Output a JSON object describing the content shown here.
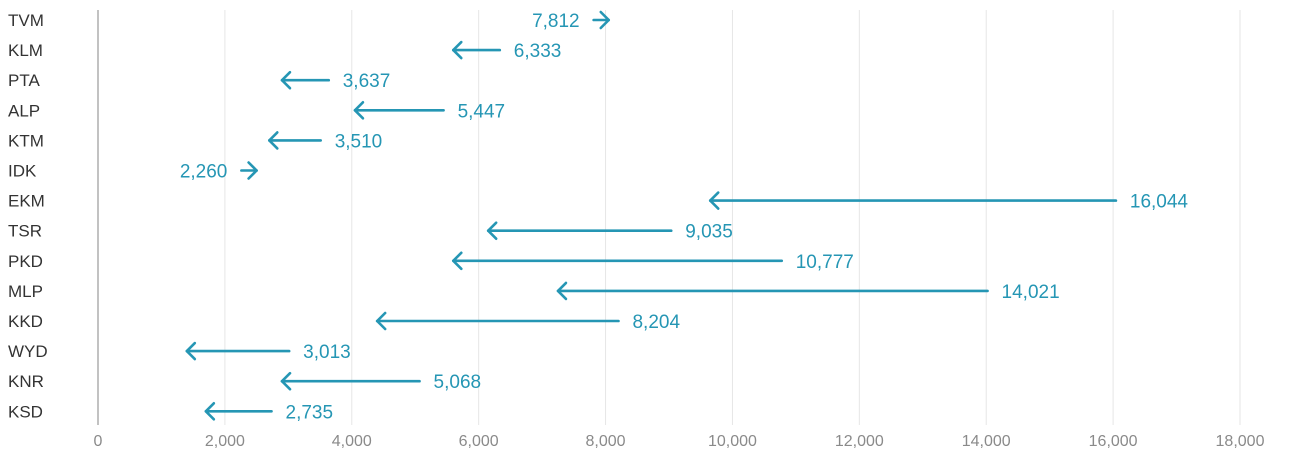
{
  "chart_data": {
    "type": "arrow",
    "title": "",
    "xlabel": "",
    "ylabel": "",
    "xlim": [
      0,
      18000
    ],
    "xticks": [
      0,
      2000,
      4000,
      6000,
      8000,
      10000,
      12000,
      14000,
      16000,
      18000
    ],
    "xtick_labels": [
      "0",
      "2,000",
      "4,000",
      "6,000",
      "8,000",
      "10,000",
      "12,000",
      "14,000",
      "16,000",
      "18,000"
    ],
    "grid": true,
    "color": "#2596b4",
    "categories": [
      "TVM",
      "KLM",
      "PTA",
      "ALP",
      "KTM",
      "IDK",
      "EKM",
      "TSR",
      "PKD",
      "MLP",
      "KKD",
      "WYD",
      "KNR",
      "KSD"
    ],
    "series": [
      {
        "start": [
          7812,
          6333,
          3637,
          5447,
          3510,
          2260,
          16044,
          9035,
          10777,
          14021,
          8204,
          3013,
          5068,
          2735
        ],
        "end": [
          8050,
          5600,
          2900,
          4050,
          2700,
          2500,
          9650,
          6150,
          5600,
          7250,
          4400,
          1400,
          2900,
          1700
        ],
        "labels": [
          "7,812",
          "6,333",
          "3,637",
          "5,447",
          "3,510",
          "2,260",
          "16,044",
          "9,035",
          "10,777",
          "14,021",
          "8,204",
          "3,013",
          "5,068",
          "2,735"
        ]
      }
    ]
  }
}
